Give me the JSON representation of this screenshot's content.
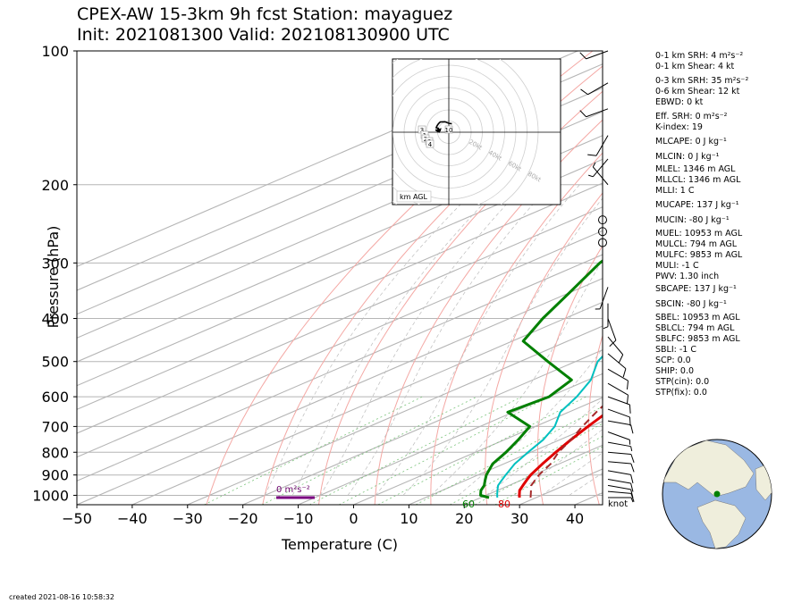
{
  "title": {
    "line1": "CPEX-AW 15-3km  9h fcst  Station: mayaguez",
    "line2": "Init: 2021081300  Valid: 202108130900 UTC"
  },
  "created": "created 2021-08-16 10:58:32",
  "units_knots": "knot",
  "surface_labels": {
    "dewpoint": "60",
    "temperature": "80"
  },
  "srh_bar_label": "0 m²s⁻²",
  "hodo_label": "km AGL",
  "hodo_rings": [
    "20kt",
    "40kt",
    "60kt",
    "80kt"
  ],
  "hodo_heights": [
    "3",
    "1",
    "2",
    "6",
    "10",
    "4"
  ],
  "colors": {
    "temperature": "#e00000",
    "dewpoint": "#008000",
    "virtual": "#00c0c0",
    "parcel": "#a52a2a",
    "srh_bar": "#7a0080"
  },
  "icon_names": [
    "globe-icon",
    "wind-barb-icon"
  ],
  "indices": [
    "0-1 km SRH: 4 m²s⁻²",
    "0-1 km Shear: 4 kt",
    "0-3 km SRH: 35 m²s⁻²",
    "0-6 km Shear: 12 kt",
    "EBWD: 0 kt",
    "Eff. SRH: 0 m²s⁻²",
    "K-index: 19",
    "MLCAPE: 0 J kg⁻¹",
    "MLCIN: 0 J kg⁻¹",
    "MLEL: 1346 m AGL",
    "MLLCL: 1346 m AGL",
    "MLLI: 1 C",
    "MUCAPE: 137 J kg⁻¹",
    "MUCIN: -80 J kg⁻¹",
    "MUEL: 10953 m AGL",
    "MULCL: 794 m AGL",
    "MULFC: 9853 m AGL",
    "MULI: -1 C",
    "PWV: 1.30 inch",
    "SBCAPE: 137 J kg⁻¹",
    "SBCIN: -80 J kg⁻¹",
    "SBEL: 10953 m AGL",
    "SBLCL: 794 m AGL",
    "SBLFC: 9853 m AGL",
    "SBLI: -1 C",
    "SCP: 0.0",
    "SHIP: 0.0",
    "STP(cin): 0.0",
    "STP(fix): 0.0"
  ],
  "chart_data": {
    "type": "line",
    "title": "CPEX-AW 15-3km  9h fcst  Station: mayaguez",
    "subtitle": "Init: 2021081300  Valid: 202108130900 UTC",
    "xlabel": "Temperature (C)",
    "ylabel": "Pressure (hPa)",
    "xlim": [
      -50,
      45
    ],
    "ylim": [
      1050,
      100
    ],
    "yscale": "log",
    "skew": true,
    "grid": true,
    "x_ticks": [
      "−50",
      "−40",
      "−30",
      "−20",
      "−10",
      "0",
      "10",
      "20",
      "30",
      "40"
    ],
    "x_tick_values": [
      -50,
      -40,
      -30,
      -20,
      -10,
      0,
      10,
      20,
      30,
      40
    ],
    "y_ticks": [
      "100",
      "200",
      "300",
      "400",
      "500",
      "600",
      "700",
      "800",
      "900",
      "1000"
    ],
    "y_tick_values": [
      100,
      200,
      300,
      400,
      500,
      600,
      700,
      800,
      900,
      1000
    ],
    "series": [
      {
        "kind": "temperature",
        "points": [
          [
            1012,
            27.0
          ],
          [
            1000,
            26.0
          ],
          [
            975,
            24.0
          ],
          [
            950,
            22.5
          ],
          [
            925,
            21.0
          ],
          [
            900,
            19.5
          ],
          [
            850,
            17.0
          ],
          [
            800,
            14.5
          ],
          [
            750,
            12.0
          ],
          [
            700,
            9.5
          ],
          [
            650,
            7.0
          ],
          [
            600,
            4.0
          ],
          [
            550,
            1.0
          ],
          [
            500,
            -2.5
          ],
          [
            450,
            -6.5
          ],
          [
            400,
            -11.5
          ],
          [
            350,
            -17.5
          ],
          [
            300,
            -25.5
          ],
          [
            250,
            -36.0
          ],
          [
            200,
            -48.0
          ],
          [
            150,
            -62.0
          ],
          [
            125,
            -70.0
          ],
          [
            100,
            -80.0
          ]
        ]
      },
      {
        "kind": "virtual",
        "points": [
          [
            1012,
            23.0
          ],
          [
            1000,
            22.0
          ],
          [
            975,
            20.0
          ],
          [
            950,
            18.0
          ],
          [
            925,
            16.5
          ],
          [
            900,
            15.0
          ],
          [
            850,
            12.0
          ],
          [
            800,
            9.5
          ],
          [
            750,
            7.0
          ],
          [
            700,
            3.5
          ],
          [
            650,
            -1.5
          ],
          [
            600,
            -5.0
          ],
          [
            550,
            -9.5
          ],
          [
            500,
            -16.0
          ],
          [
            450,
            -21.0
          ],
          [
            400,
            -26.5
          ],
          [
            350,
            -31.5
          ],
          [
            300,
            -38.0
          ],
          [
            250,
            -44.0
          ],
          [
            200,
            -52.0
          ],
          [
            150,
            -64.0
          ],
          [
            125,
            -74.0
          ],
          [
            100,
            -88.0
          ]
        ]
      },
      {
        "kind": "dewpoint",
        "points": [
          [
            1012,
            21.5
          ],
          [
            1000,
            19.0
          ],
          [
            975,
            17.0
          ],
          [
            950,
            15.5
          ],
          [
            925,
            13.5
          ],
          [
            900,
            11.5
          ],
          [
            850,
            8.0
          ],
          [
            800,
            5.5
          ],
          [
            750,
            2.5
          ],
          [
            700,
            -1.0
          ],
          [
            650,
            -11.0
          ],
          [
            600,
            -10.0
          ],
          [
            550,
            -13.0
          ],
          [
            500,
            -25.0
          ],
          [
            450,
            -38.0
          ],
          [
            400,
            -44.0
          ],
          [
            350,
            -50.0
          ],
          [
            300,
            -57.0
          ],
          [
            250,
            -63.0
          ],
          [
            200,
            -68.0
          ],
          [
            150,
            -81.0
          ],
          [
            125,
            -93.0
          ],
          [
            100,
            -103.0
          ]
        ]
      },
      {
        "kind": "parcel",
        "points": [
          [
            1012,
            29.0
          ],
          [
            950,
            24.0
          ],
          [
            900,
            21.0
          ],
          [
            850,
            18.5
          ],
          [
            800,
            15.0
          ],
          [
            750,
            12.0
          ],
          [
            700,
            8.5
          ],
          [
            650,
            5.0
          ],
          [
            600,
            1.5
          ],
          [
            550,
            -2.0
          ],
          [
            500,
            -5.5
          ],
          [
            450,
            -9.0
          ],
          [
            400,
            -13.5
          ],
          [
            350,
            -18.5
          ],
          [
            300,
            -25.0
          ],
          [
            250,
            -34.0
          ],
          [
            200,
            -46.0
          ],
          [
            150,
            -62.0
          ],
          [
            125,
            -73.0
          ],
          [
            100,
            -87.0
          ]
        ]
      }
    ],
    "barbs_kt": [
      {
        "p": 1012,
        "dir": 90,
        "spd": 8
      },
      {
        "p": 980,
        "dir": 95,
        "spd": 10
      },
      {
        "p": 950,
        "dir": 100,
        "spd": 10
      },
      {
        "p": 920,
        "dir": 100,
        "spd": 12
      },
      {
        "p": 880,
        "dir": 100,
        "spd": 12
      },
      {
        "p": 840,
        "dir": 95,
        "spd": 10
      },
      {
        "p": 800,
        "dir": 95,
        "spd": 10
      },
      {
        "p": 760,
        "dir": 100,
        "spd": 8
      },
      {
        "p": 720,
        "dir": 110,
        "spd": 8
      },
      {
        "p": 680,
        "dir": 100,
        "spd": 10
      },
      {
        "p": 640,
        "dir": 110,
        "spd": 10
      },
      {
        "p": 600,
        "dir": 110,
        "spd": 12
      },
      {
        "p": 560,
        "dir": 120,
        "spd": 12
      },
      {
        "p": 520,
        "dir": 120,
        "spd": 12
      },
      {
        "p": 480,
        "dir": 130,
        "spd": 12
      },
      {
        "p": 440,
        "dir": 140,
        "spd": 12
      },
      {
        "p": 400,
        "dir": 160,
        "spd": 10
      },
      {
        "p": 370,
        "dir": 180,
        "spd": 8
      },
      {
        "p": 340,
        "dir": 200,
        "spd": 8
      },
      {
        "p": 270,
        "dir": 0,
        "spd": 0
      },
      {
        "p": 255,
        "dir": 0,
        "spd": 0
      },
      {
        "p": 240,
        "dir": 0,
        "spd": 0
      },
      {
        "p": 200,
        "dir": 320,
        "spd": 8
      },
      {
        "p": 175,
        "dir": 220,
        "spd": 8
      },
      {
        "p": 155,
        "dir": 210,
        "spd": 10
      },
      {
        "p": 135,
        "dir": 250,
        "spd": 10
      },
      {
        "p": 118,
        "dir": 240,
        "spd": 10
      },
      {
        "p": 100,
        "dir": 250,
        "spd": 12
      }
    ]
  }
}
